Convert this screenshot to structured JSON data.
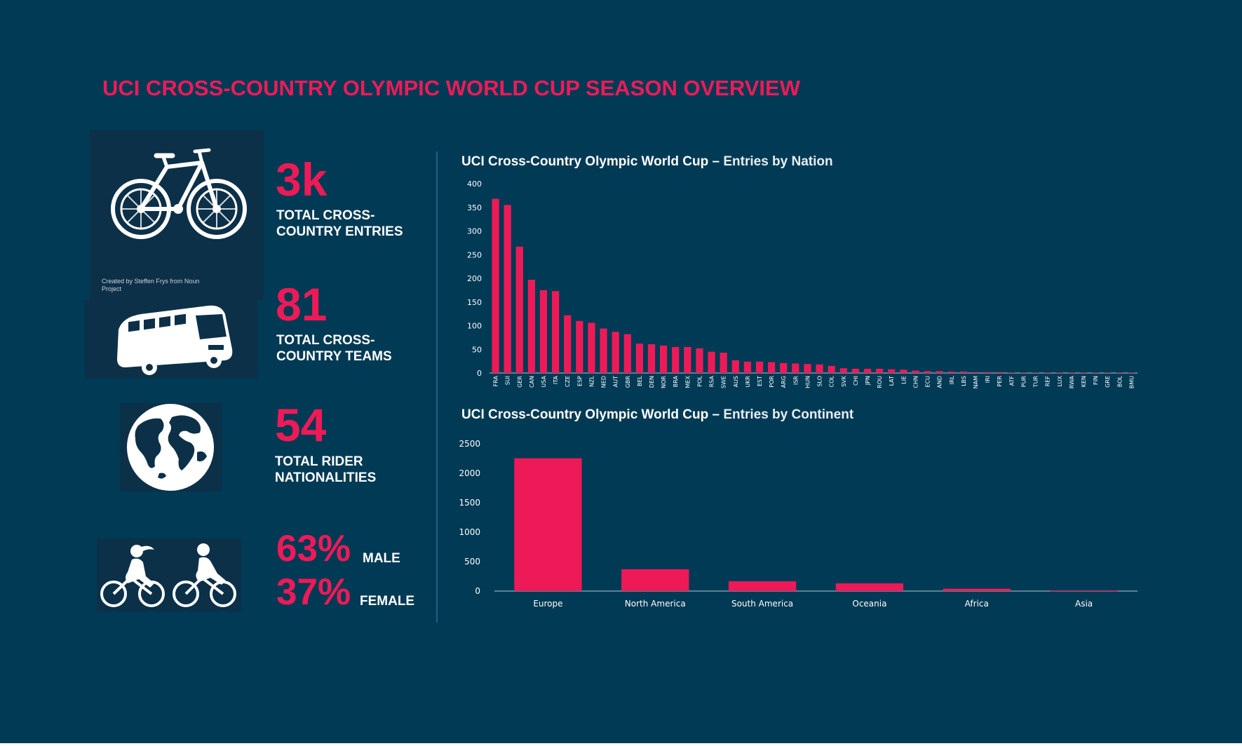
{
  "title": "UCI CROSS-COUNTRY OLYMPIC WORLD CUP SEASON OVERVIEW",
  "icon_credit": "Created by Steffen Frys from Noun Project",
  "stats": [
    {
      "icon": "bicycle-icon",
      "value": "3k",
      "label_1": "TOTAL CROSS-",
      "label_2": "COUNTRY ENTRIES"
    },
    {
      "icon": "bus-icon",
      "value": "81",
      "label_1": "TOTAL CROSS-",
      "label_2": "COUNTRY TEAMS"
    },
    {
      "icon": "globe-icon",
      "value": "54",
      "label_1": "TOTAL RIDER",
      "label_2": "NATIONALITIES"
    }
  ],
  "gender": {
    "icon": "cyclists-icon",
    "male_value": "63%",
    "male_label": "MALE",
    "female_value": "37%",
    "female_label": "FEMALE"
  },
  "colors": {
    "accent": "#ee1a57",
    "background": "#003a55",
    "text": "#ffffff"
  },
  "chart_data": [
    {
      "type": "bar",
      "title_prefix": "UCI Cross-Country Olympic World Cup – ",
      "title_suffix": "Entries by Nation",
      "categories": [
        "FRA",
        "SUI",
        "GER",
        "CAN",
        "USA",
        "ITA",
        "CZE",
        "ESP",
        "NZL",
        "NED",
        "AUT",
        "GBR",
        "BEL",
        "DEN",
        "NOR",
        "BRA",
        "MEX",
        "POL",
        "RSA",
        "SWE",
        "AUS",
        "UKR",
        "EST",
        "POR",
        "ARG",
        "ISR",
        "HUN",
        "SLO",
        "COL",
        "SVK",
        "CHI",
        "JPN",
        "ROU",
        "LAT",
        "LIE",
        "CHN",
        "ECU",
        "AND",
        "IRL",
        "LBS",
        "NAM",
        "IRI",
        "PER",
        "ATF",
        "PUR",
        "TUR",
        "REF",
        "LUX",
        "RWA",
        "KEN",
        "FIN",
        "GRE",
        "BOL",
        "BMU"
      ],
      "values": [
        368,
        355,
        267,
        197,
        175,
        173,
        122,
        110,
        106,
        94,
        87,
        82,
        62,
        61,
        58,
        55,
        55,
        52,
        45,
        43,
        27,
        24,
        24,
        23,
        21,
        20,
        19,
        18,
        15,
        10,
        9,
        9,
        9,
        8,
        7,
        5,
        4,
        4,
        3,
        3,
        2,
        2,
        2,
        1,
        1,
        1,
        1,
        1,
        1,
        1,
        1,
        1,
        1,
        1
      ],
      "yticks": [
        0,
        50,
        100,
        150,
        200,
        250,
        300,
        350,
        400
      ],
      "ylim": [
        0,
        400
      ]
    },
    {
      "type": "bar",
      "title_prefix": "UCI Cross-Country Olympic World Cup – ",
      "title_suffix": "Entries by Continent",
      "categories": [
        "Europe",
        "North America",
        "South America",
        "Oceania",
        "Africa",
        "Asia"
      ],
      "values": [
        2255,
        370,
        165,
        130,
        40,
        10
      ],
      "yticks": [
        0,
        500,
        1000,
        1500,
        2000,
        2500
      ],
      "ylim": [
        0,
        2500
      ]
    }
  ]
}
